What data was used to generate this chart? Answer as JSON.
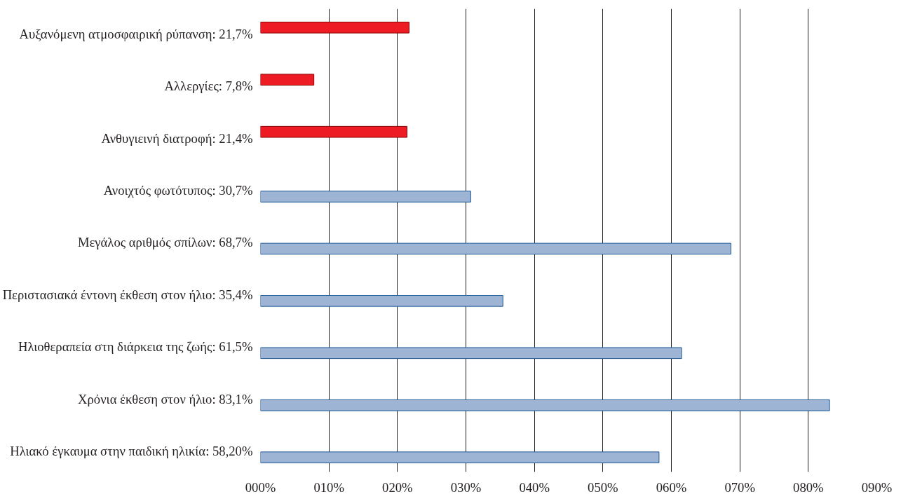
{
  "chart_data": {
    "type": "bar",
    "orientation": "horizontal",
    "categories": [
      "Αυξανόμενη ατμοσφαιρική ρύπανση: 21,7%",
      "Αλλεργίες: 7,8%",
      "Ανθυγιεινή διατροφή: 21,4%",
      "Ανοιχτός φωτότυπος: 30,7%",
      "Μεγάλος αριθμός σπίλων: 68,7%",
      "Περιστασιακά έντονη έκθεση στον ήλιο: 35,4%",
      "Ηλιοθεραπεία στη διάρκεια της ζωής: 61,5%",
      "Χρόνια έκθεση στον ήλιο: 83,1%",
      "Ηλιακό έγκαυμα στην παιδική ηλικία: 58,20%"
    ],
    "series": [
      {
        "color": "#ed1c24",
        "values": [
          21.7,
          7.8,
          21.4,
          null,
          null,
          null,
          null,
          null,
          null
        ]
      },
      {
        "color": "#9db4d4",
        "values": [
          null,
          null,
          null,
          30.7,
          68.7,
          35.4,
          61.5,
          83.1,
          58.2
        ]
      }
    ],
    "xlim": [
      0,
      90
    ],
    "xticks": [
      {
        "value": 0,
        "label": "000%"
      },
      {
        "value": 10,
        "label": "010%"
      },
      {
        "value": 20,
        "label": "020%"
      },
      {
        "value": 30,
        "label": "030%"
      },
      {
        "value": 40,
        "label": "040%"
      },
      {
        "value": 50,
        "label": "050%"
      },
      {
        "value": 60,
        "label": "060%"
      },
      {
        "value": 70,
        "label": "070%"
      },
      {
        "value": 80,
        "label": "080%"
      },
      {
        "value": 90,
        "label": "090%"
      }
    ],
    "grid": "x"
  }
}
